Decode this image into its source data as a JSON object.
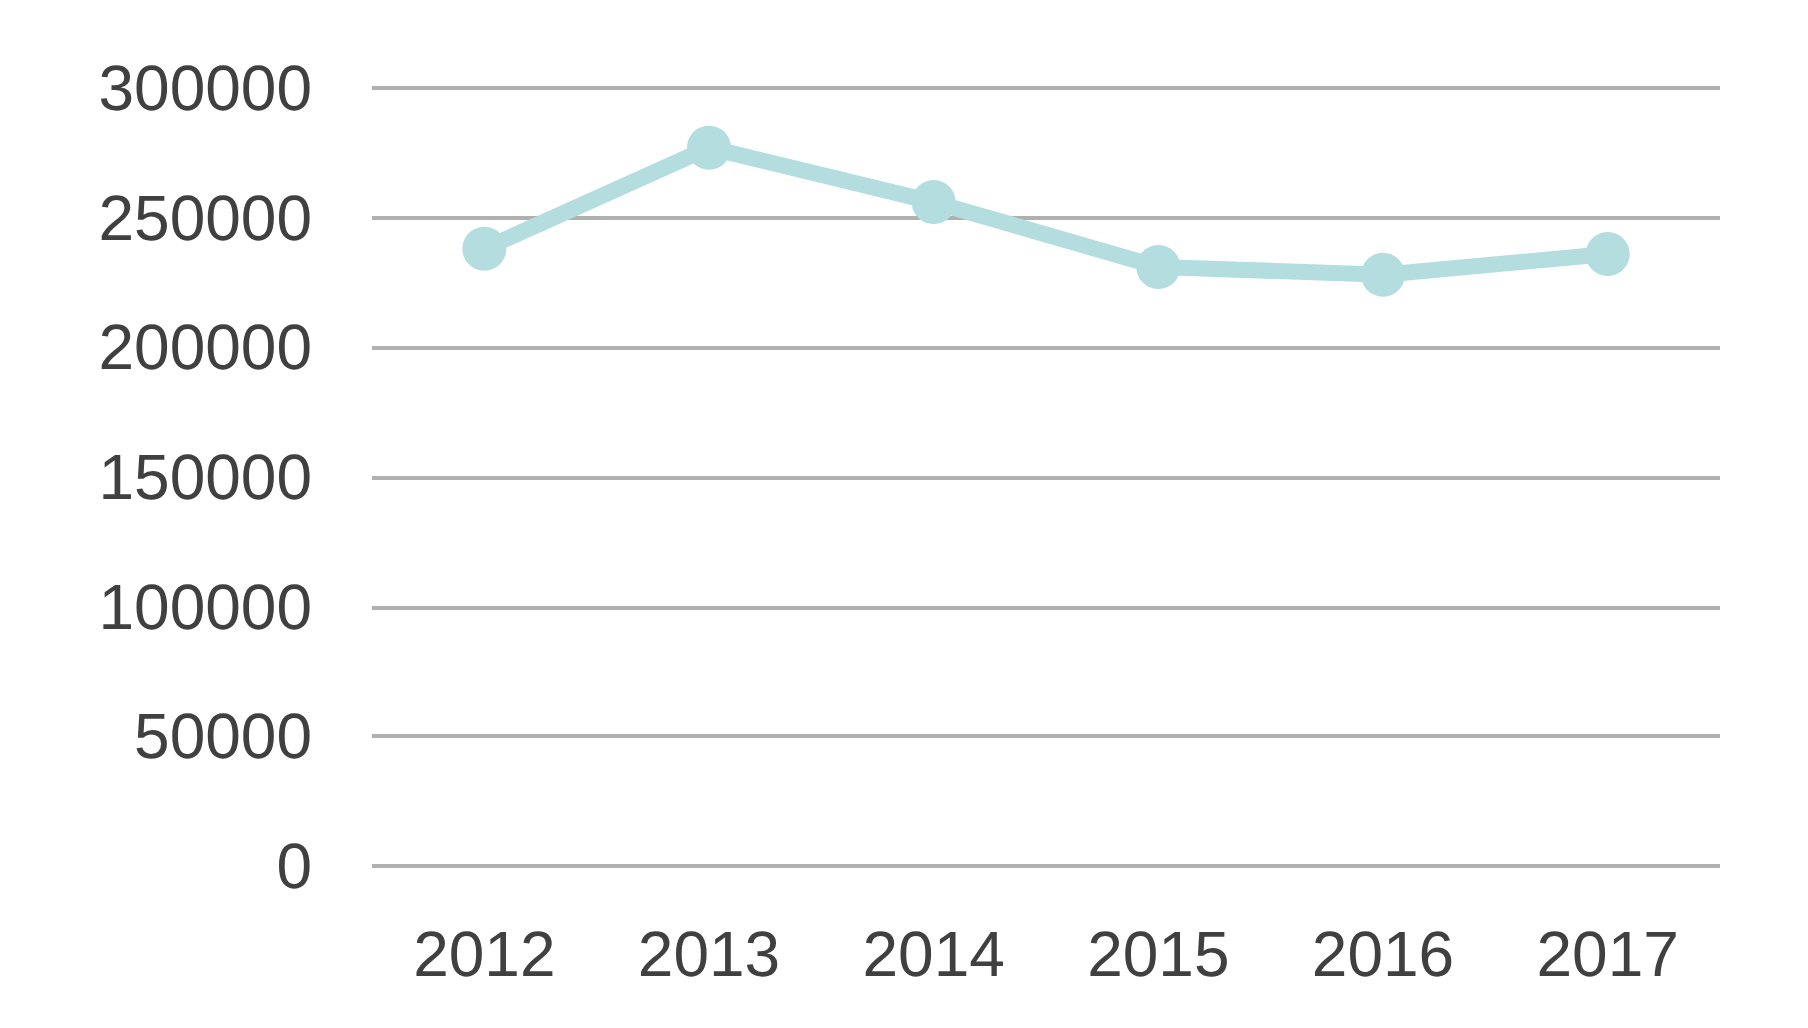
{
  "chart_data": {
    "type": "line",
    "categories": [
      "2012",
      "2013",
      "2014",
      "2015",
      "2016",
      "2017"
    ],
    "series": [
      {
        "color": "#b4dde0",
        "values": [
          238000,
          277000,
          256000,
          231000,
          228000,
          236000
        ]
      }
    ],
    "ylim": [
      0,
      300000
    ],
    "yticks": [
      0,
      50000,
      100000,
      150000,
      200000,
      250000,
      300000
    ],
    "grid": "y",
    "marker": "circle",
    "line_style": "solid"
  }
}
